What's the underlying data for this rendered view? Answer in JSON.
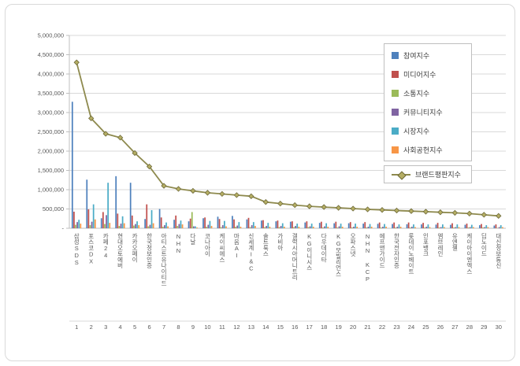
{
  "chart_data": {
    "type": "bar+line",
    "title": "",
    "xlabel": "",
    "ylabel": "",
    "ylim": [
      0,
      5000000
    ],
    "grid": true,
    "legend_position": "upper-right",
    "y_ticks": [
      "5,000,000",
      "4,500,000",
      "4,000,000",
      "3,500,000",
      "3,000,000",
      "2,500,000",
      "2,000,000",
      "1,500,000",
      "1,000,000",
      "500,000",
      "-"
    ],
    "categories": [
      "삼성SDS",
      "포스코DX",
      "카페24",
      "현대오토에버",
      "카카오페이",
      "한국정보인증",
      "아티스트유나이티드",
      "NHN",
      "다날",
      "코나아이",
      "케이씨에스",
      "마음AI",
      "신세계I&C",
      "솔트룩스",
      "가비아",
      "갤럭시아머니트리",
      "KG이니시스",
      "다우데이타",
      "KG모빌리언스",
      "오파스넷",
      "NHN KCP",
      "에프앤가이드",
      "한국전자인증",
      "롯데이노베이트",
      "인포뱅크",
      "엠브레인",
      "유엔젤",
      "케이아이엔엑스",
      "딥노이드",
      "대신정보통신"
    ],
    "ranks": [
      "1",
      "2",
      "3",
      "4",
      "5",
      "6",
      "7",
      "8",
      "9",
      "10",
      "11",
      "12",
      "13",
      "14",
      "15",
      "16",
      "17",
      "18",
      "19",
      "20",
      "21",
      "22",
      "23",
      "24",
      "25",
      "26",
      "27",
      "28",
      "29",
      "30"
    ],
    "series": [
      {
        "name": "참여지수",
        "color": "#4F81BD",
        "values": [
          3280000,
          1260000,
          260000,
          1350000,
          1180000,
          240000,
          500000,
          220000,
          180000,
          260000,
          300000,
          320000,
          230000,
          200000,
          180000,
          170000,
          150000,
          140000,
          130000,
          130000,
          120000,
          115000,
          110000,
          105000,
          100000,
          95000,
          90000,
          90000,
          80000,
          70000
        ]
      },
      {
        "name": "미디어지수",
        "color": "#C0504D",
        "values": [
          430000,
          490000,
          420000,
          380000,
          330000,
          620000,
          280000,
          330000,
          250000,
          280000,
          240000,
          230000,
          270000,
          210000,
          200000,
          180000,
          180000,
          170000,
          170000,
          160000,
          160000,
          150000,
          150000,
          150000,
          140000,
          140000,
          130000,
          120000,
          110000,
          100000
        ]
      },
      {
        "name": "소통지수",
        "color": "#9BBB59",
        "values": [
          90000,
          80000,
          110000,
          60000,
          70000,
          50000,
          40000,
          60000,
          420000,
          40000,
          30000,
          40000,
          30000,
          30000,
          30000,
          30000,
          30000,
          20000,
          20000,
          20000,
          20000,
          20000,
          20000,
          20000,
          20000,
          20000,
          20000,
          20000,
          20000,
          10000
        ]
      },
      {
        "name": "커뮤니티지수",
        "color": "#8064A2",
        "values": [
          160000,
          170000,
          340000,
          120000,
          110000,
          90000,
          80000,
          110000,
          50000,
          90000,
          80000,
          70000,
          80000,
          60000,
          60000,
          60000,
          50000,
          50000,
          50000,
          40000,
          40000,
          40000,
          40000,
          40000,
          40000,
          30000,
          30000,
          30000,
          30000,
          30000
        ]
      },
      {
        "name": "시장지수",
        "color": "#4BACC6",
        "values": [
          220000,
          620000,
          1180000,
          310000,
          180000,
          470000,
          150000,
          200000,
          50000,
          190000,
          190000,
          160000,
          160000,
          140000,
          130000,
          120000,
          120000,
          130000,
          120000,
          120000,
          110000,
          110000,
          100000,
          100000,
          100000,
          100000,
          100000,
          90000,
          80000,
          80000
        ]
      },
      {
        "name": "사회공헌지수",
        "color": "#F79646",
        "values": [
          120000,
          230000,
          140000,
          130000,
          80000,
          130000,
          50000,
          100000,
          20000,
          60000,
          50000,
          40000,
          60000,
          40000,
          40000,
          40000,
          40000,
          40000,
          40000,
          40000,
          40000,
          40000,
          40000,
          30000,
          30000,
          30000,
          30000,
          30000,
          30000,
          30000
        ]
      }
    ],
    "line_series": {
      "name": "브랜드평판지수",
      "color": "#8E8A4E",
      "marker_fill": "#B5AE64",
      "marker_stroke": "#6E6A3A",
      "values": [
        4300000,
        2850000,
        2450000,
        2350000,
        1950000,
        1600000,
        1100000,
        1020000,
        970000,
        920000,
        890000,
        860000,
        830000,
        680000,
        640000,
        600000,
        570000,
        550000,
        530000,
        510000,
        490000,
        475000,
        460000,
        445000,
        430000,
        415000,
        400000,
        380000,
        350000,
        320000
      ]
    }
  }
}
